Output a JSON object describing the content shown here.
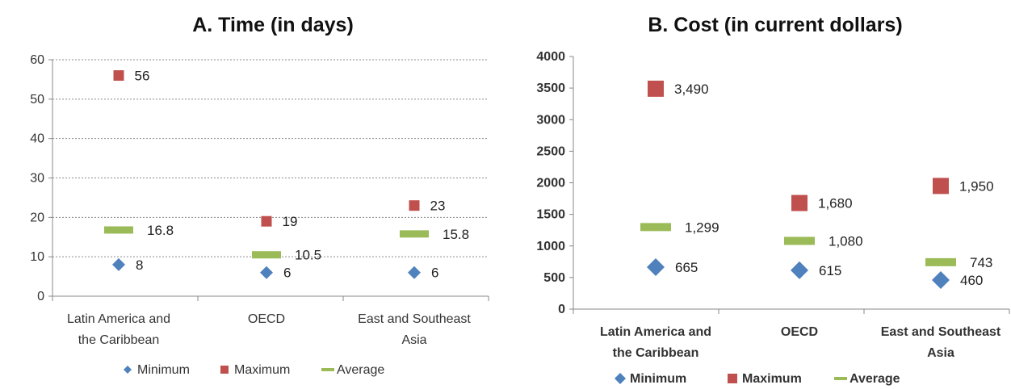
{
  "colors": {
    "minimum": "#4F81BD",
    "maximum": "#C0504D",
    "average": "#9BBB59"
  },
  "chart_data": [
    {
      "type": "scatter",
      "title": "A.   Time (in days)",
      "categories": [
        [
          "Latin America and",
          "the Caribbean"
        ],
        [
          "OECD"
        ],
        [
          "East and Southeast",
          "Asia"
        ]
      ],
      "yticks": [
        "0",
        "10",
        "20",
        "30",
        "40",
        "50",
        "60"
      ],
      "ylim": [
        0,
        60
      ],
      "grid": true,
      "legend_position": "bottom",
      "series": [
        {
          "name": "Minimum",
          "key": "minimum",
          "marker": "diamond",
          "values": [
            8,
            6,
            6
          ],
          "labels": [
            "8",
            "6",
            "6"
          ]
        },
        {
          "name": "Maximum",
          "key": "maximum",
          "marker": "square",
          "values": [
            56,
            19,
            23
          ],
          "labels": [
            "56",
            "19",
            "23"
          ]
        },
        {
          "name": "Average",
          "key": "average",
          "marker": "dash",
          "values": [
            16.8,
            10.5,
            15.8
          ],
          "labels": [
            "16.8",
            "10.5",
            "15.8"
          ]
        }
      ]
    },
    {
      "type": "scatter",
      "title": "B.   Cost (in current dollars)",
      "categories": [
        [
          "Latin America and",
          "the Caribbean"
        ],
        [
          "OECD"
        ],
        [
          "East and Southeast",
          "Asia"
        ]
      ],
      "yticks": [
        "0",
        "500",
        "1000",
        "1500",
        "2000",
        "2500",
        "3000",
        "3500",
        "4000"
      ],
      "ylim": [
        0,
        4000
      ],
      "grid": false,
      "legend_position": "bottom",
      "series": [
        {
          "name": "Minimum",
          "key": "minimum",
          "marker": "diamond",
          "values": [
            665,
            615,
            460
          ],
          "labels": [
            "665",
            "615",
            "460"
          ]
        },
        {
          "name": "Maximum",
          "key": "maximum",
          "marker": "square",
          "values": [
            3490,
            1680,
            1950
          ],
          "labels": [
            "3,490",
            "1,680",
            "1,950"
          ]
        },
        {
          "name": "Average",
          "key": "average",
          "marker": "dash",
          "values": [
            1299,
            1080,
            743
          ],
          "labels": [
            "1,299",
            "1,080",
            "743"
          ]
        }
      ]
    }
  ]
}
